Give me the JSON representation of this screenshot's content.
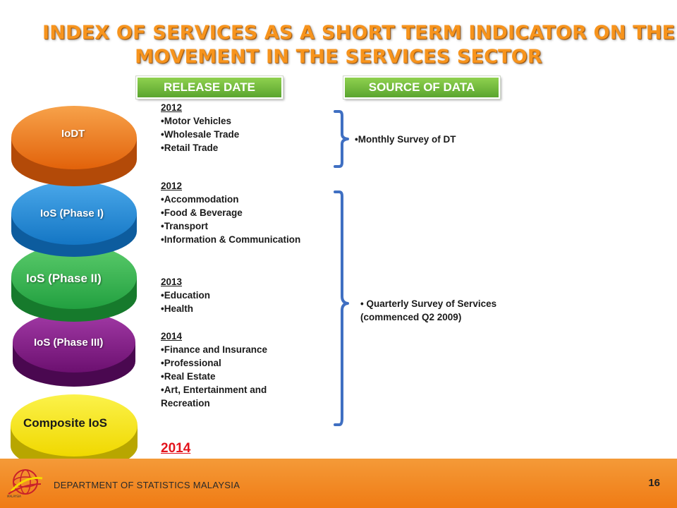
{
  "title": {
    "line1": "INDEX OF SERVICES AS A SHORT TERM INDICATOR ON THE",
    "line2": "MOVEMENT IN THE SERVICES SECTOR"
  },
  "headers": {
    "release_date": "RELEASE DATE",
    "source_of_data": "SOURCE OF DATA"
  },
  "indices": [
    {
      "label": "IoDT",
      "color": "#f07a1c"
    },
    {
      "label": "IoS (Phase I)",
      "color": "#1a86d6"
    },
    {
      "label": "IoS (Phase II)",
      "color": "#2bb24a"
    },
    {
      "label": "IoS (Phase III)",
      "color": "#7b1a7e"
    },
    {
      "label": "Composite IoS",
      "color": "#f5e60a"
    }
  ],
  "release": {
    "iodt": {
      "year": "2012",
      "items": [
        "Motor Vehicles",
        "Wholesale Trade",
        "Retail Trade"
      ]
    },
    "phase1": {
      "year": "2012",
      "items": [
        "Accommodation",
        "Food & Beverage",
        "Transport",
        "Information & Communication"
      ]
    },
    "phase2": {
      "year": "2013",
      "items": [
        "Education",
        "Health"
      ]
    },
    "phase3": {
      "year": "2014",
      "items": [
        "Finance and Insurance",
        "Professional",
        "Real Estate",
        "Art, Entertainment and Recreation"
      ]
    },
    "composite_year": "2014"
  },
  "sources": {
    "dt": "Monthly Survey of DT",
    "services_line1": "Quarterly Survey of Services",
    "services_line2": "(commenced Q2 2009)"
  },
  "footer": {
    "department": "DEPARTMENT OF STATISTICS MALAYSIA",
    "page": "16",
    "logo_caption": "MALAYSIA"
  }
}
